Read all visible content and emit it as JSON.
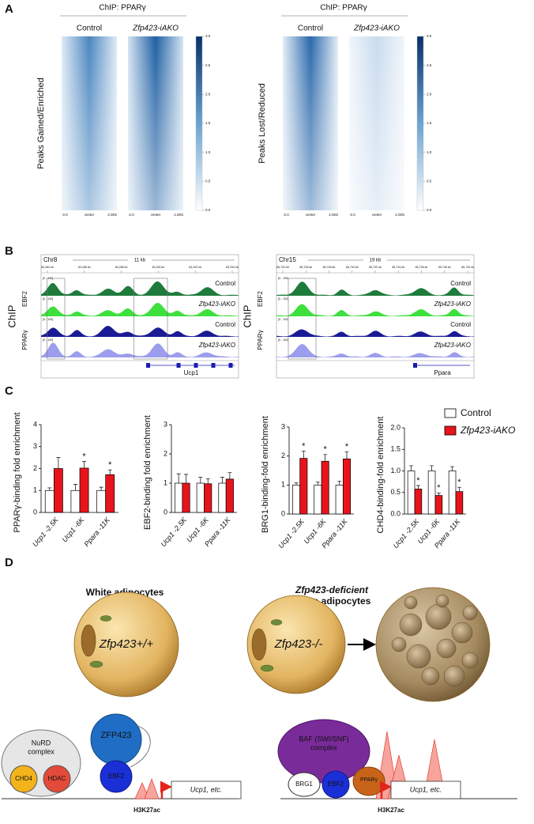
{
  "panel_a": {
    "label": "A",
    "groups": [
      {
        "title": "ChIP: PPARγ",
        "columns": [
          "Control",
          "Zfp423-iAKO"
        ],
        "row_label": "Peaks Gained/Enriched"
      },
      {
        "title": "ChIP: PPARγ",
        "columns": [
          "Control",
          "Zfp423-iAKO"
        ],
        "row_label": "Peaks Lost/Reduced"
      }
    ],
    "x_ticks": [
      "-2.0",
      "center",
      "2.0Kb"
    ],
    "colorbar": {
      "lim": [
        0,
        3
      ],
      "ticks": [
        {
          "value": 0,
          "label": "0.0"
        },
        0.5,
        {
          "value": 1,
          "label": "1.0"
        },
        1.5,
        {
          "value": 2,
          "label": "2.0"
        },
        2.5,
        {
          "value": 3,
          "label": "3.0"
        }
      ]
    }
  },
  "panel_b": {
    "label": "B",
    "side_label": "ChIP",
    "factors": [
      "EBF2",
      "PPARγ"
    ],
    "conditions": [
      "Control",
      "Zfp423-iAKO"
    ],
    "range": "[0 - 100]",
    "loci": [
      {
        "chrom": "Chr8",
        "span": "11 kb",
        "coords": [
          "83,284 kb",
          "83,286 kb",
          "83,288 kb",
          "83,290 kb",
          "83,292 kb",
          "83,294 kb"
        ],
        "gene": "Ucp1"
      },
      {
        "chrom": "Chr15",
        "span": "19 kb",
        "coords": [
          "85,724 kb",
          "85,726 kb",
          "85,728 kb",
          "85,730 kb",
          "85,732 kb",
          "85,734 kb",
          "85,736 kb",
          "85,738 kb",
          "85,740 kb"
        ],
        "gene": "Ppara"
      }
    ]
  },
  "panel_c": {
    "label": "C"
  },
  "chart_data": [
    {
      "type": "bar",
      "ylabel": "PPARγ-binding fold enrichment",
      "categories": [
        "Ucp1 -2.5K",
        "Ucp1 -6K",
        "Ppara -11K"
      ],
      "ylim": [
        0,
        4
      ],
      "yticks": [
        0,
        1,
        2,
        3,
        4
      ],
      "series": [
        {
          "color": "#ffffff",
          "values": [
            1.0,
            1.0,
            1.0
          ],
          "errors": [
            0.12,
            0.28,
            0.15
          ]
        },
        {
          "color": "#e8141b",
          "values": [
            2.0,
            2.02,
            1.72
          ],
          "errors": [
            0.5,
            0.3,
            0.22
          ],
          "significance": [
            null,
            "*",
            "*"
          ]
        }
      ]
    },
    {
      "type": "bar",
      "ylabel": "EBF2-binding fold enrichment",
      "categories": [
        "Ucp1 -2.5K",
        "Ucp1 -6K",
        "Ppara -11K"
      ],
      "ylim": [
        0,
        3
      ],
      "yticks": [
        0,
        1,
        2,
        3
      ],
      "series": [
        {
          "color": "#ffffff",
          "values": [
            1.0,
            1.0,
            1.0
          ],
          "errors": [
            0.32,
            0.2,
            0.2
          ]
        },
        {
          "color": "#e8141b",
          "values": [
            1.0,
            0.98,
            1.14
          ],
          "errors": [
            0.3,
            0.17,
            0.22
          ]
        }
      ]
    },
    {
      "type": "bar",
      "ylabel": "BRG1-binding-fold enrichment",
      "categories": [
        "Ucp1 -2.5K",
        "Ucp1 -6K",
        "Ppara -11K"
      ],
      "ylim": [
        0,
        3
      ],
      "yticks": [
        0,
        1,
        2,
        3
      ],
      "series": [
        {
          "color": "#ffffff",
          "values": [
            1.0,
            1.0,
            1.0
          ],
          "errors": [
            0.07,
            0.1,
            0.13
          ]
        },
        {
          "color": "#e8141b",
          "values": [
            1.92,
            1.82,
            1.9
          ],
          "errors": [
            0.25,
            0.23,
            0.25
          ],
          "significance": [
            "*",
            "*",
            "*"
          ]
        }
      ]
    },
    {
      "type": "bar",
      "ylabel": "CHD4-binding-fold enrichment",
      "categories": [
        "Ucp1 -2.5K",
        "Ucp1 -6K",
        "Ppara -11K"
      ],
      "ylim": [
        0,
        2
      ],
      "yticks": [
        {
          "value": 0,
          "label": "0.0"
        },
        0.5,
        {
          "value": 1,
          "label": "1.0"
        },
        1.5,
        {
          "value": 2,
          "label": "2.0"
        }
      ],
      "series": [
        {
          "name": "Control",
          "color": "#ffffff",
          "values": [
            1.0,
            1.0,
            1.0
          ],
          "errors": [
            0.12,
            0.12,
            0.1
          ]
        },
        {
          "name": "Zfp423-iAKO",
          "color": "#e8141b",
          "values": [
            0.58,
            0.43,
            0.52
          ],
          "errors": [
            0.08,
            0.06,
            0.1
          ],
          "significance": [
            "*",
            "*",
            "*"
          ]
        }
      ]
    }
  ],
  "panel_d": {
    "label": "D",
    "left": {
      "title": [
        "White adipocytes"
      ],
      "cell": "Zfp423+/+"
    },
    "right": {
      "title": [
        "Zfp423-deficient",
        "White adipocytes"
      ],
      "cell": "Zfp423-/-"
    },
    "left_complex": {
      "name": [
        "NuRD",
        "complex"
      ],
      "subunits": [
        "CHD4",
        "HDAC"
      ],
      "factors": [
        "ZFP423",
        "EBF2"
      ],
      "mark": "H3K27ac",
      "target": "Ucp1, etc."
    },
    "right_complex": {
      "name": [
        "BAF (SWI/SNF)",
        "complex"
      ],
      "subunits": [
        "BRG1"
      ],
      "factors": [
        "EBF2",
        "PPARγ"
      ],
      "mark": "H3K27ac",
      "target": "Ucp1, etc."
    }
  }
}
